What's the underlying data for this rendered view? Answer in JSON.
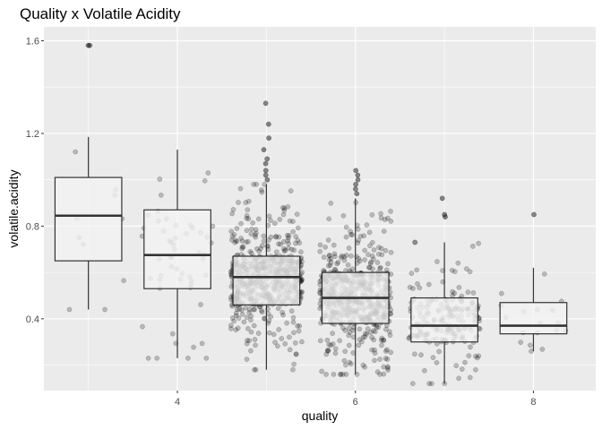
{
  "chart_data": {
    "type": "boxplot-jitter",
    "title": "Quality x Volatile Acidity",
    "xlabel": "quality",
    "ylabel": "volatile.acidity",
    "xlim": [
      2.5,
      8.7
    ],
    "ylim": [
      0.09,
      1.66
    ],
    "x_ticks": [
      4,
      6,
      8
    ],
    "y_ticks": [
      0.4,
      0.8,
      1.2,
      1.6
    ],
    "x_tick_labels": [
      "4",
      "6",
      "8"
    ],
    "y_tick_labels": [
      "0.4",
      "0.8",
      "1.2",
      "1.6"
    ],
    "grid": true,
    "boxes": [
      {
        "quality": 3,
        "min": 0.44,
        "q1": 0.65,
        "median": 0.845,
        "q3": 1.01,
        "max": 1.185,
        "outliers": [
          1.58,
          1.58
        ]
      },
      {
        "quality": 4,
        "min": 0.23,
        "q1": 0.53,
        "median": 0.675,
        "q3": 0.87,
        "max": 1.13,
        "outliers": []
      },
      {
        "quality": 5,
        "min": 0.18,
        "q1": 0.46,
        "median": 0.58,
        "q3": 0.67,
        "max": 0.98,
        "outliers": [
          1.0,
          1.02,
          1.04,
          1.07,
          1.09,
          1.13,
          1.18,
          1.24,
          1.33
        ]
      },
      {
        "quality": 6,
        "min": 0.16,
        "q1": 0.38,
        "median": 0.49,
        "q3": 0.6,
        "max": 0.92,
        "outliers": [
          0.94,
          0.96,
          0.98,
          1.0,
          1.02,
          1.04
        ]
      },
      {
        "quality": 7,
        "min": 0.12,
        "q1": 0.3,
        "median": 0.37,
        "q3": 0.49,
        "max": 0.73,
        "outliers": [
          0.84,
          0.85,
          0.92
        ]
      },
      {
        "quality": 8,
        "min": 0.26,
        "q1": 0.335,
        "median": 0.37,
        "q3": 0.47,
        "max": 0.62,
        "outliers": [
          0.85
        ]
      }
    ],
    "jitter_counts": {
      "3": 10,
      "4": 53,
      "5": 681,
      "6": 638,
      "7": 199,
      "8": 18
    },
    "colors": {
      "panel": "#ebebeb",
      "grid": "#ffffff",
      "box_fill": "#f2f2f2",
      "box_stroke": "#333333",
      "point": "#000000"
    }
  }
}
